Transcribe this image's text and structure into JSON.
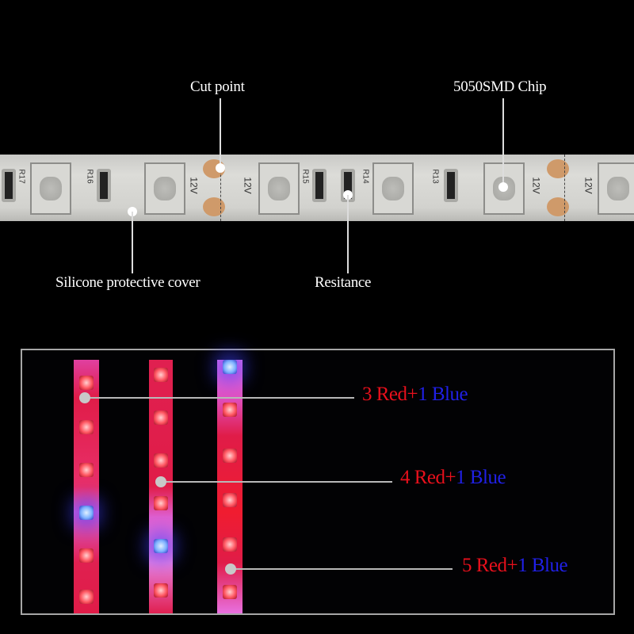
{
  "top_callouts": {
    "cut_point": "Cut point",
    "chip": "5050SMD Chip",
    "cover": "Silicone protective cover",
    "resistance": "Resitance"
  },
  "strip_markings": {
    "resistors": [
      "R17",
      "R16",
      "R15",
      "R14",
      "R13"
    ],
    "voltage": "12V",
    "minus": "-",
    "plus": "+"
  },
  "ratio_labels": [
    {
      "red": "3 Red+",
      "blue": "1 Blue"
    },
    {
      "red": "4 Red+",
      "blue": "1 Blue"
    },
    {
      "red": "5 Red+",
      "blue": "1 Blue"
    }
  ],
  "colors": {
    "red_text": "#e8101c",
    "blue_text": "#2020e6",
    "strip_pink": "#e0408a",
    "strip_red": "#e01838"
  }
}
